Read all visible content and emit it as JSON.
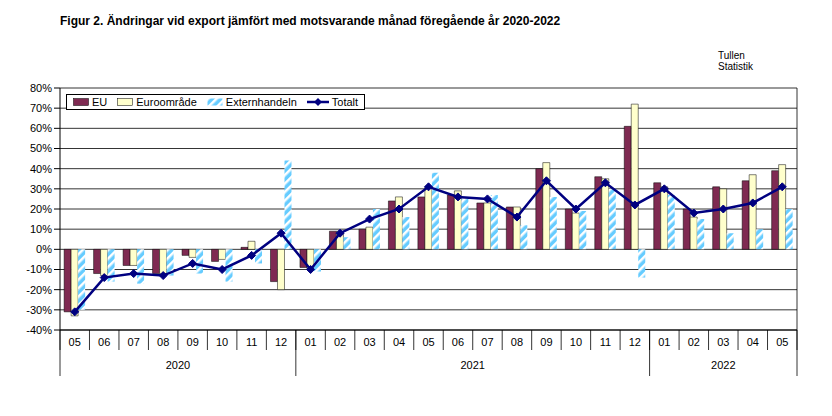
{
  "chart_data": {
    "type": "bar",
    "title": "Figur 2. Ändringar vid export jämfört med motsvarande månad föregående år 2020-2022",
    "annotations": [
      "Tullen",
      "Statistik"
    ],
    "categories": [
      "05",
      "06",
      "07",
      "08",
      "09",
      "10",
      "11",
      "12",
      "01",
      "02",
      "03",
      "04",
      "05",
      "06",
      "07",
      "08",
      "09",
      "10",
      "11",
      "12",
      "01",
      "02",
      "03",
      "04",
      "05"
    ],
    "groups": [
      {
        "label": "2020",
        "count": 8
      },
      {
        "label": "2021",
        "count": 12
      },
      {
        "label": "2022",
        "count": 5
      }
    ],
    "series": [
      {
        "name": "EU",
        "type": "bar",
        "color": "#7f2a52",
        "values": [
          -31,
          -12,
          -8,
          -12,
          -3,
          -6,
          1,
          -16,
          -9,
          9,
          10,
          24,
          26,
          27,
          23,
          21,
          40,
          20,
          36,
          61,
          33,
          20,
          31,
          34,
          39
        ]
      },
      {
        "name": "Euroområde",
        "type": "bar",
        "color": "#ffffcc",
        "values": [
          -33,
          -13,
          -8,
          -12,
          -4,
          -5,
          4,
          -20,
          -10,
          9,
          11,
          26,
          31,
          29,
          23,
          21,
          43,
          18,
          35,
          72,
          31,
          16,
          30,
          37,
          42
        ]
      },
      {
        "name": "Externhandeln",
        "type": "bar",
        "color": "#66ccff",
        "line_style": "hatch",
        "values": [
          -30,
          -16,
          -17,
          -13,
          -12,
          -16,
          -7,
          44,
          -11,
          6,
          20,
          16,
          38,
          25,
          27,
          12,
          26,
          19,
          30,
          -14,
          27,
          15,
          8,
          10,
          20
        ]
      },
      {
        "name": "Totalt",
        "type": "line",
        "color": "#000080",
        "marker": "diamond",
        "values": [
          -31,
          -14,
          -12,
          -13,
          -7,
          -10,
          -3,
          8,
          -10,
          8,
          15,
          20,
          31,
          26,
          25,
          16,
          34,
          20,
          33,
          22,
          30,
          18,
          20,
          23,
          31
        ]
      }
    ],
    "ylim": [
      -40,
      80
    ],
    "yticks": [
      {
        "value": -40,
        "label": "-40%"
      },
      {
        "value": -30,
        "label": "-30%"
      },
      {
        "value": -20,
        "label": "-20%"
      },
      {
        "value": -10,
        "label": "-10%"
      },
      {
        "value": 0,
        "label": "0%"
      },
      {
        "value": 10,
        "label": "10%"
      },
      {
        "value": 20,
        "label": "20%"
      },
      {
        "value": 30,
        "label": "30%"
      },
      {
        "value": 40,
        "label": "40%"
      },
      {
        "value": 50,
        "label": "50%"
      },
      {
        "value": 60,
        "label": "60%"
      },
      {
        "value": 70,
        "label": "70%"
      },
      {
        "value": 80,
        "label": "80%"
      }
    ],
    "grid": true,
    "legend": "top-left"
  }
}
